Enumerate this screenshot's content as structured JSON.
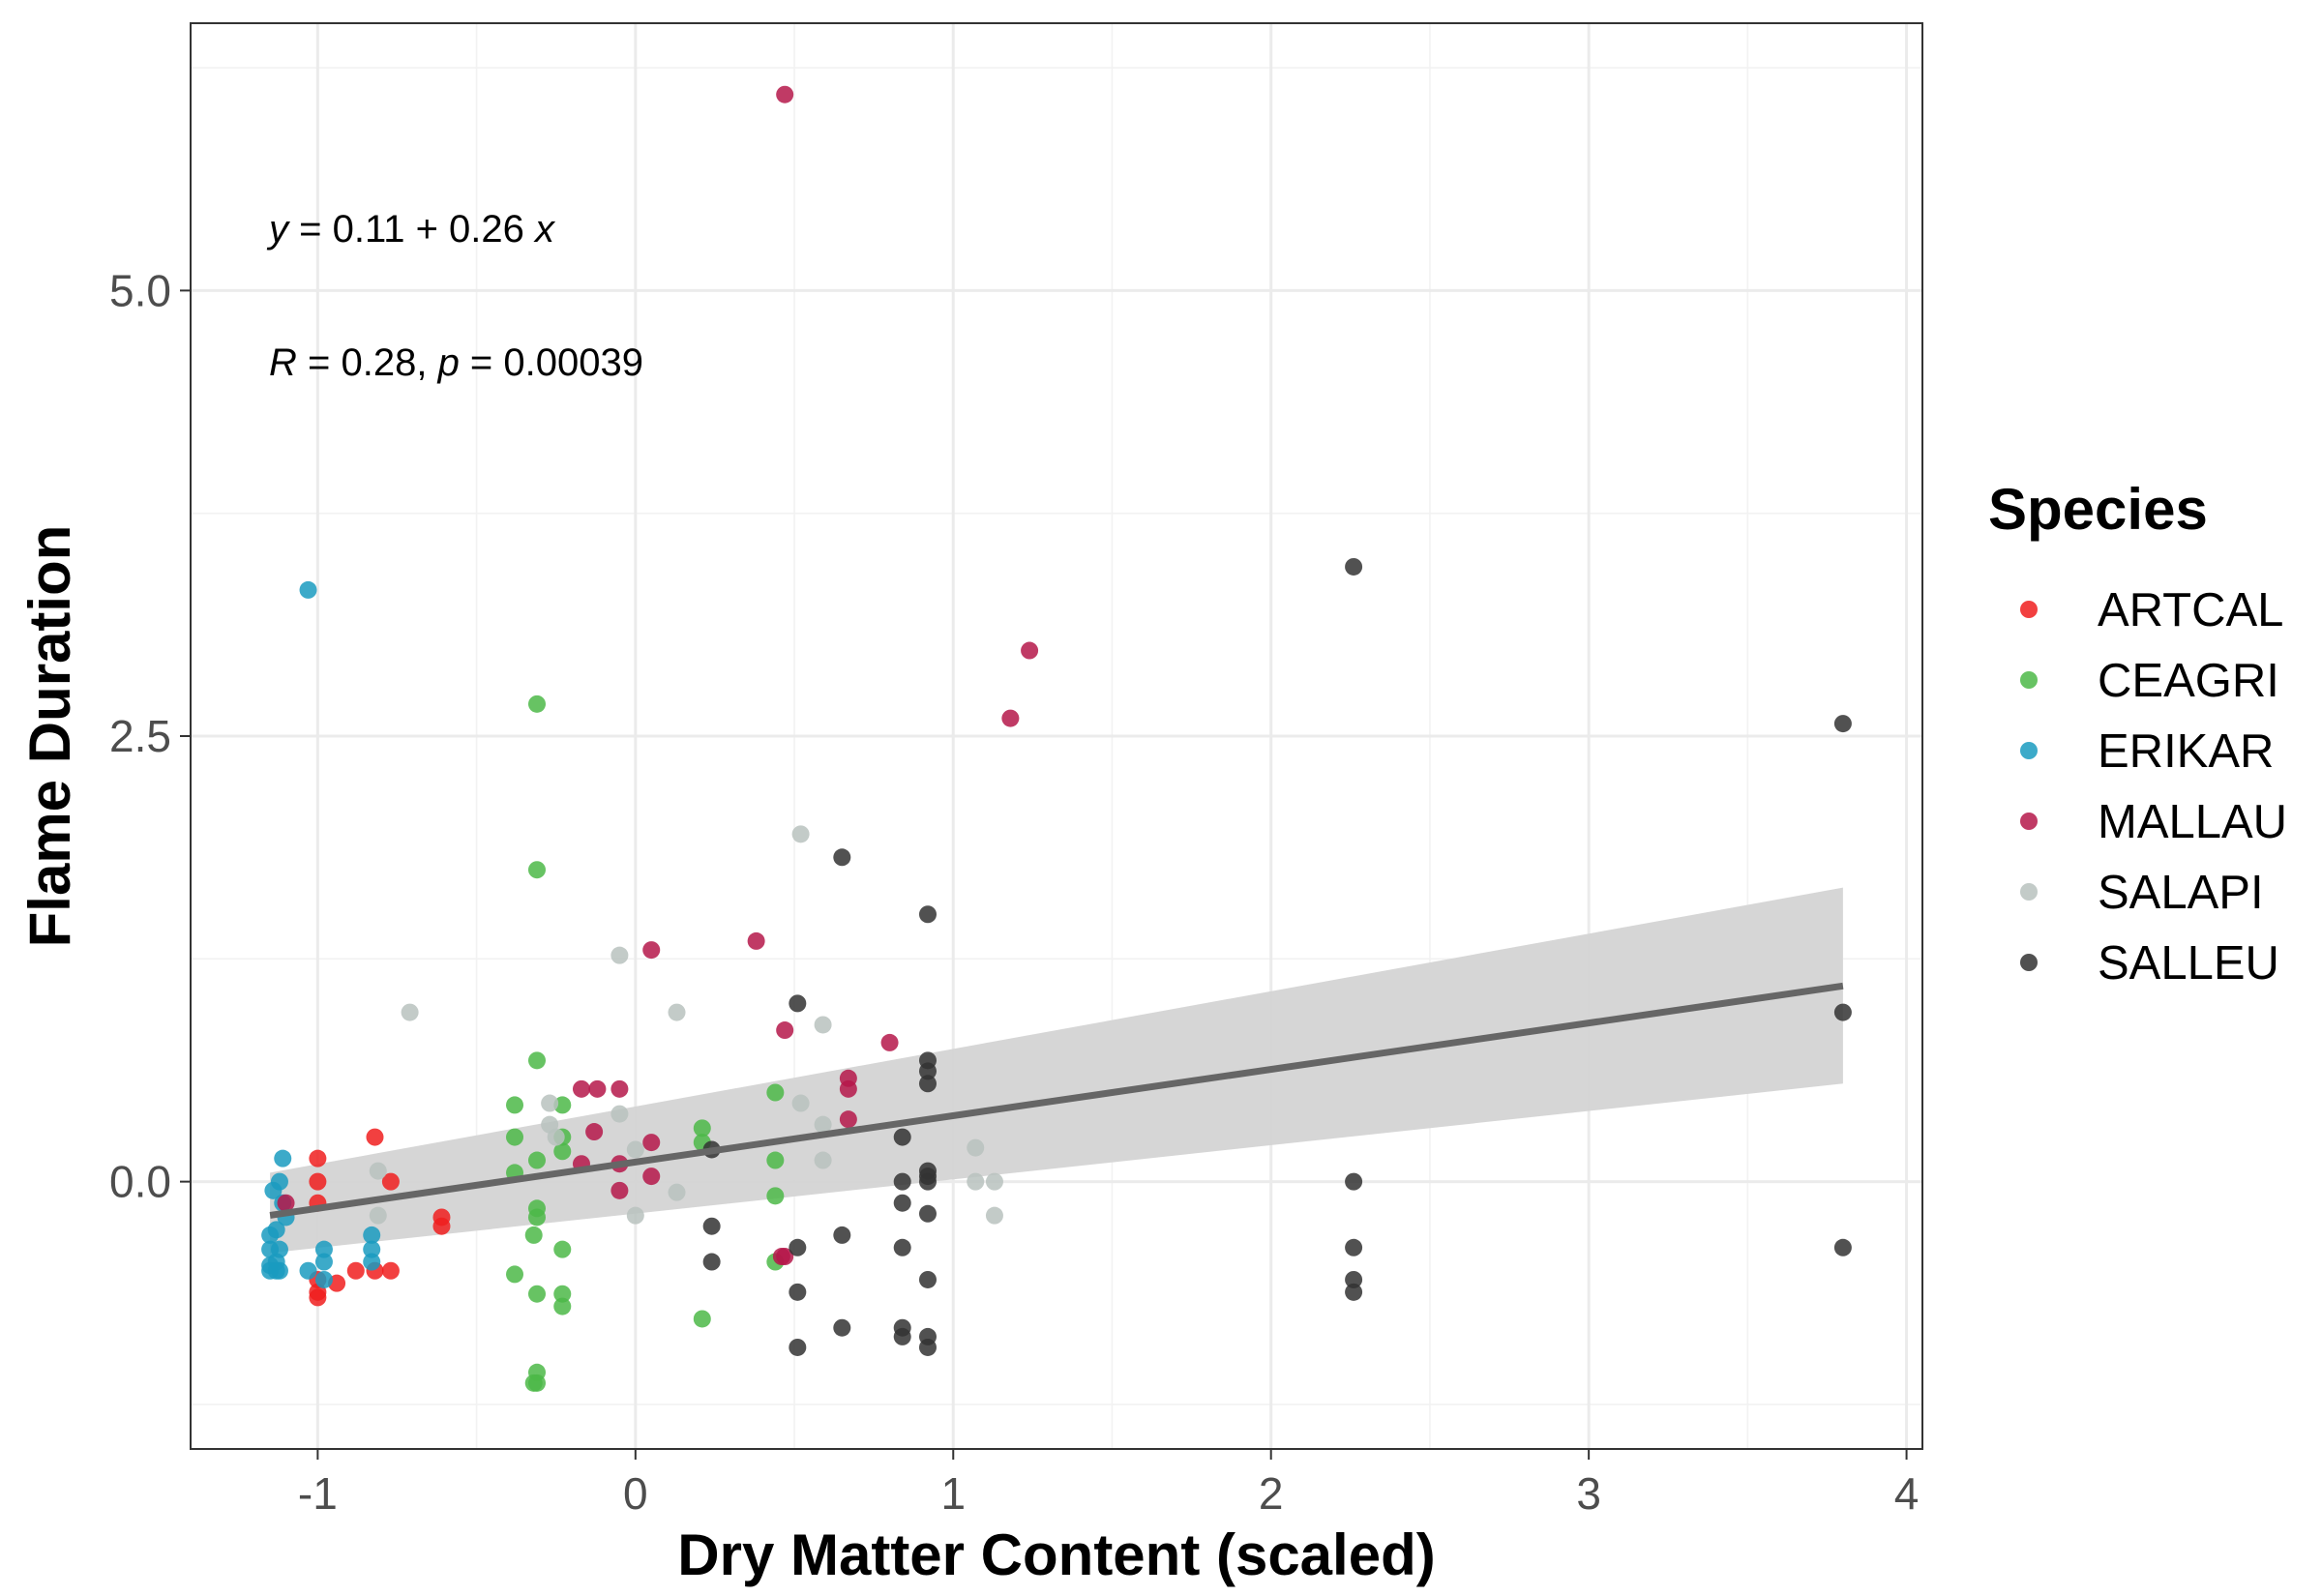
{
  "chart_data": {
    "type": "scatter",
    "xlabel": "Dry Matter Content (scaled)",
    "ylabel": "Flame Duration",
    "xlim": [
      -1.4,
      4.05
    ],
    "ylim": [
      -1.5,
      6.5
    ],
    "x_ticks": [
      -1,
      0,
      1,
      2,
      3,
      4
    ],
    "x_tick_labels": [
      "-1",
      "0",
      "1",
      "2",
      "3",
      "4"
    ],
    "y_ticks": [
      0,
      2.5,
      5
    ],
    "y_tick_labels": [
      "0.0",
      "2.5",
      "5.0"
    ],
    "grid": true,
    "legend": {
      "title": "Species",
      "position": "right"
    },
    "annotations": {
      "equation": {
        "y": "y",
        "eq1": " = 0.11 + 0.26 ",
        "x": "x"
      },
      "stats": {
        "R": "R",
        "r_part": " = 0.28, ",
        "p": "p",
        "p_part": " = 0.00039"
      }
    },
    "fit": {
      "intercept": 0.11,
      "slope": 0.26,
      "x_range": [
        -1.15,
        3.8
      ],
      "ci_lower": [
        -0.4,
        0.55
      ],
      "ci_upper": [
        0.05,
        1.65
      ],
      "line_color": "#666666",
      "band_color": "#d4d4d4"
    },
    "series": [
      {
        "name": "ARTCAL",
        "color": "#f01e1e",
        "points": [
          [
            -1.0,
            0.13
          ],
          [
            -1.0,
            0.0
          ],
          [
            -1.0,
            -0.12
          ],
          [
            -1.0,
            -0.55
          ],
          [
            -1.0,
            -0.62
          ],
          [
            -1.0,
            -0.65
          ],
          [
            -0.94,
            -0.57
          ],
          [
            -0.88,
            -0.5
          ],
          [
            -0.82,
            0.25
          ],
          [
            -0.82,
            -0.5
          ],
          [
            -0.77,
            0.0
          ],
          [
            -0.77,
            -0.5
          ],
          [
            -0.61,
            -0.2
          ],
          [
            -0.61,
            -0.25
          ]
        ]
      },
      {
        "name": "CEAGRI",
        "color": "#4cb848",
        "points": [
          [
            -0.31,
            2.68
          ],
          [
            -0.31,
            1.75
          ],
          [
            -0.31,
            0.68
          ],
          [
            -0.38,
            0.43
          ],
          [
            -0.23,
            0.43
          ],
          [
            -0.38,
            0.25
          ],
          [
            -0.23,
            0.25
          ],
          [
            -0.31,
            0.12
          ],
          [
            -0.23,
            0.17
          ],
          [
            -0.38,
            0.05
          ],
          [
            -0.31,
            -0.15
          ],
          [
            -0.31,
            -0.2
          ],
          [
            -0.32,
            -0.3
          ],
          [
            -0.23,
            -0.38
          ],
          [
            -0.38,
            -0.52
          ],
          [
            -0.31,
            -0.63
          ],
          [
            -0.23,
            -0.63
          ],
          [
            -0.23,
            -0.7
          ],
          [
            -0.31,
            -1.07
          ],
          [
            -0.31,
            -1.13
          ],
          [
            -0.32,
            -1.13
          ],
          [
            0.21,
            0.3
          ],
          [
            0.21,
            0.22
          ],
          [
            0.21,
            -0.77
          ],
          [
            0.44,
            0.5
          ],
          [
            0.44,
            0.12
          ],
          [
            0.44,
            -0.08
          ],
          [
            0.44,
            -0.45
          ]
        ]
      },
      {
        "name": "ERIKAR",
        "color": "#1a9bbf",
        "points": [
          [
            -1.03,
            3.32
          ],
          [
            -1.11,
            0.13
          ],
          [
            -1.12,
            0.0
          ],
          [
            -1.14,
            -0.05
          ],
          [
            -1.11,
            -0.12
          ],
          [
            -1.1,
            -0.2
          ],
          [
            -1.13,
            -0.27
          ],
          [
            -1.15,
            -0.3
          ],
          [
            -1.12,
            -0.38
          ],
          [
            -1.15,
            -0.38
          ],
          [
            -1.13,
            -0.45
          ],
          [
            -1.15,
            -0.47
          ],
          [
            -1.12,
            -0.5
          ],
          [
            -1.15,
            -0.5
          ],
          [
            -1.13,
            -0.5
          ],
          [
            -1.03,
            -0.5
          ],
          [
            -0.98,
            -0.38
          ],
          [
            -0.98,
            -0.45
          ],
          [
            -0.98,
            -0.55
          ],
          [
            -0.83,
            -0.3
          ],
          [
            -0.83,
            -0.38
          ],
          [
            -0.83,
            -0.45
          ]
        ]
      },
      {
        "name": "MALLAU",
        "color": "#b5184a",
        "points": [
          [
            0.47,
            6.1
          ],
          [
            1.24,
            2.98
          ],
          [
            1.18,
            2.6
          ],
          [
            0.38,
            1.35
          ],
          [
            0.05,
            1.3
          ],
          [
            0.47,
            0.85
          ],
          [
            0.8,
            0.78
          ],
          [
            0.67,
            0.58
          ],
          [
            0.67,
            0.52
          ],
          [
            -0.17,
            0.52
          ],
          [
            -0.12,
            0.52
          ],
          [
            -0.05,
            0.52
          ],
          [
            0.67,
            0.35
          ],
          [
            -0.13,
            0.28
          ],
          [
            0.05,
            0.22
          ],
          [
            -0.17,
            0.1
          ],
          [
            -0.05,
            0.1
          ],
          [
            0.05,
            0.03
          ],
          [
            -0.05,
            -0.05
          ],
          [
            -1.1,
            -0.12
          ],
          [
            0.46,
            -0.42
          ],
          [
            0.47,
            -0.42
          ]
        ]
      },
      {
        "name": "SALAPI",
        "color": "#b8c2be",
        "points": [
          [
            0.52,
            1.95
          ],
          [
            -0.05,
            1.27
          ],
          [
            -0.71,
            0.95
          ],
          [
            0.13,
            0.95
          ],
          [
            0.59,
            0.88
          ],
          [
            -0.27,
            0.44
          ],
          [
            0.52,
            0.44
          ],
          [
            -0.05,
            0.38
          ],
          [
            -0.27,
            0.32
          ],
          [
            0.59,
            0.32
          ],
          [
            -0.25,
            0.25
          ],
          [
            1.07,
            0.19
          ],
          [
            0.0,
            0.18
          ],
          [
            0.59,
            0.12
          ],
          [
            -0.81,
            0.06
          ],
          [
            1.07,
            0.0
          ],
          [
            1.13,
            0.0
          ],
          [
            0.13,
            -0.06
          ],
          [
            -0.81,
            -0.19
          ],
          [
            0.0,
            -0.19
          ],
          [
            1.13,
            -0.19
          ]
        ]
      },
      {
        "name": "SALLEU",
        "color": "#333333",
        "points": [
          [
            2.26,
            3.45
          ],
          [
            3.8,
            2.57
          ],
          [
            0.65,
            1.82
          ],
          [
            0.92,
            1.5
          ],
          [
            0.51,
            1.0
          ],
          [
            3.8,
            0.95
          ],
          [
            0.92,
            0.68
          ],
          [
            0.92,
            0.62
          ],
          [
            0.92,
            0.55
          ],
          [
            0.84,
            0.25
          ],
          [
            0.24,
            0.18
          ],
          [
            0.92,
            0.06
          ],
          [
            0.92,
            0.03
          ],
          [
            0.84,
            0.0
          ],
          [
            0.92,
            0.0
          ],
          [
            2.26,
            0.0
          ],
          [
            0.84,
            -0.12
          ],
          [
            0.92,
            -0.18
          ],
          [
            0.24,
            -0.25
          ],
          [
            0.65,
            -0.3
          ],
          [
            0.51,
            -0.37
          ],
          [
            0.84,
            -0.37
          ],
          [
            2.26,
            -0.37
          ],
          [
            3.8,
            -0.37
          ],
          [
            0.24,
            -0.45
          ],
          [
            0.92,
            -0.55
          ],
          [
            2.26,
            -0.55
          ],
          [
            0.51,
            -0.62
          ],
          [
            2.26,
            -0.62
          ],
          [
            0.65,
            -0.82
          ],
          [
            0.84,
            -0.82
          ],
          [
            0.84,
            -0.87
          ],
          [
            0.92,
            -0.87
          ],
          [
            0.51,
            -0.93
          ],
          [
            0.92,
            -0.93
          ]
        ]
      }
    ]
  }
}
